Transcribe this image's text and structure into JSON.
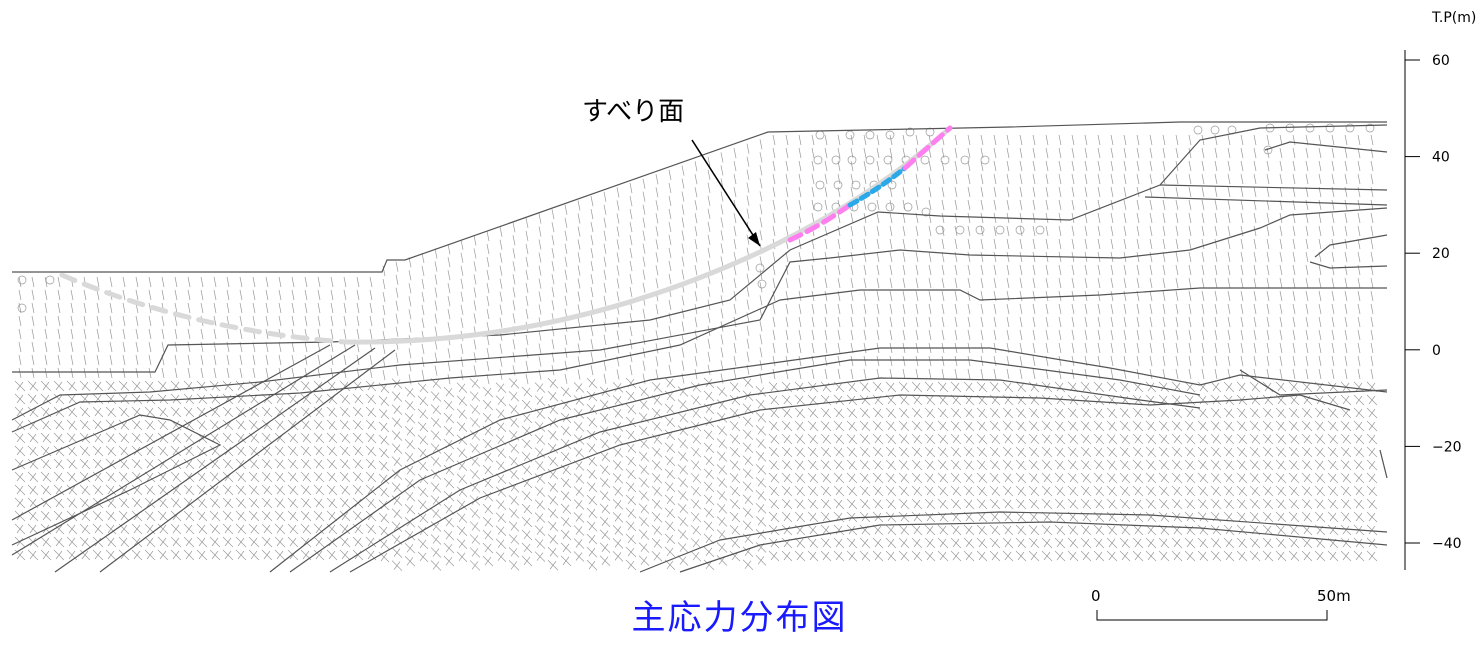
{
  "figure": {
    "title": "主応力分布図",
    "title_color": "#1a1aff",
    "callout_label": "すべり面",
    "axis_unit": "T.P(m)",
    "axis_ticks": [
      60,
      40,
      20,
      0,
      -20,
      -40
    ],
    "tick_labels": [
      "60",
      "40",
      "20",
      "0",
      "−20",
      "−40"
    ],
    "scale_bar": {
      "zero_label": "0",
      "end_label": "50m"
    },
    "colors": {
      "slip_surface": "#d9d9d9",
      "segment_pink": "#ff7ff0",
      "segment_blue": "#2aa8e8",
      "layer_line": "#555555",
      "stress_glyph": "#9a9a9a"
    }
  }
}
